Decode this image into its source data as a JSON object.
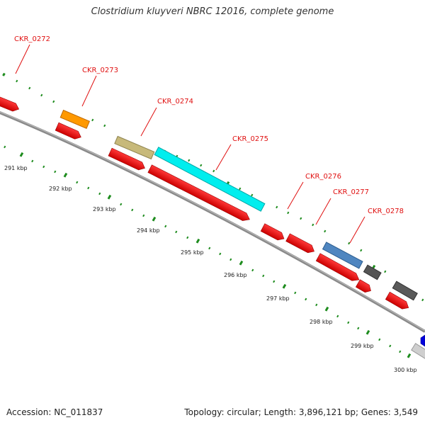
{
  "title": "Clostridium kluyveri NBRC 12016, complete genome",
  "footer": {
    "accession": "Accession: NC_011837",
    "summary": "Topology: circular; Length: 3,896,121 bp; Genes: 3,549"
  },
  "colors": {
    "backbone": "#8a8a8a",
    "label": "#e01010",
    "cds": "#ee1111",
    "tick": "#1e8c1e"
  },
  "gene_labels": [
    "CKR_0272",
    "CKR_0273",
    "CKR_0274",
    "CKR_0275",
    "CKR_0276",
    "CKR_0277",
    "CKR_0278"
  ],
  "kbp_labels": [
    "291 kbp",
    "292 kbp",
    "293 kbp",
    "294 kbp",
    "295 kbp",
    "296 kbp",
    "297 kbp",
    "298 kbp",
    "299 kbp",
    "300 kbp"
  ]
}
